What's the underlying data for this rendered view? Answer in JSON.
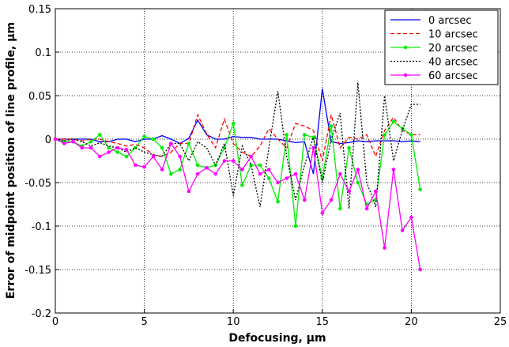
{
  "chart_data": {
    "type": "line",
    "xlabel": "Defocusing, µm",
    "ylabel": "Error of midpoint position of line profile, µm",
    "xlim": [
      0,
      25
    ],
    "ylim": [
      -0.2,
      0.15
    ],
    "xticks": [
      0,
      5,
      10,
      15,
      20,
      25
    ],
    "yticks": [
      -0.2,
      -0.15,
      -0.1,
      -0.05,
      0,
      0.05,
      0.1,
      0.15
    ],
    "xtick_labels": [
      "0",
      "5",
      "10",
      "15",
      "20",
      "25"
    ],
    "ytick_labels": [
      "-0.2",
      "-0.15",
      "-0.1",
      "-0.05",
      "0",
      "0.05",
      "0.1",
      "0.15"
    ],
    "grid": true,
    "legend_position": "top-right",
    "x": [
      0,
      0.5,
      1,
      1.5,
      2,
      2.5,
      3,
      3.5,
      4,
      4.5,
      5,
      5.5,
      6,
      6.5,
      7,
      7.5,
      8,
      8.5,
      9,
      9.5,
      10,
      10.5,
      11,
      11.5,
      12,
      12.5,
      13,
      13.5,
      14,
      14.5,
      15,
      15.5,
      16,
      16.5,
      17,
      17.5,
      18,
      18.5,
      19,
      19.5,
      20,
      20.5
    ],
    "series": [
      {
        "name": "0 arcsec",
        "color": "#0000ff",
        "dash": "",
        "marker": false,
        "values": [
          0,
          0,
          0,
          0,
          0,
          -0.003,
          -0.003,
          0,
          0,
          -0.003,
          0,
          0,
          0.004,
          0,
          -0.005,
          0.001,
          0.022,
          0.005,
          0,
          0,
          0.003,
          0.002,
          0.002,
          0,
          0,
          0,
          -0.002,
          -0.004,
          -0.003,
          -0.04,
          0.058,
          -0.003,
          -0.005,
          -0.004,
          -0.002,
          -0.003,
          -0.002,
          -0.002,
          -0.002,
          -0.003,
          -0.002,
          -0.003
        ]
      },
      {
        "name": "10 arcsec",
        "color": "#ff0000",
        "dash": "5,3",
        "marker": false,
        "values": [
          0,
          0,
          0,
          -0.002,
          0,
          0,
          -0.003,
          -0.005,
          -0.008,
          -0.006,
          -0.01,
          -0.018,
          -0.02,
          -0.015,
          -0.005,
          -0.005,
          0.028,
          0.006,
          -0.01,
          0.023,
          -0.005,
          -0.015,
          -0.02,
          -0.008,
          0.012,
          0,
          -0.01,
          0.018,
          0.015,
          0.01,
          -0.025,
          0.028,
          -0.01,
          0.002,
          0,
          0.005,
          -0.02,
          0.01,
          0.025,
          0.01,
          0.005,
          0.005
        ]
      },
      {
        "name": "20 arcsec",
        "color": "#00ee00",
        "dash": "",
        "marker": true,
        "values": [
          0,
          -0.003,
          -0.003,
          -0.008,
          -0.003,
          0.005,
          -0.01,
          -0.015,
          -0.02,
          -0.01,
          0.003,
          0,
          -0.01,
          -0.04,
          -0.035,
          -0.005,
          -0.03,
          -0.033,
          -0.03,
          -0.01,
          0.018,
          -0.053,
          -0.03,
          -0.03,
          -0.045,
          -0.072,
          0.005,
          -0.1,
          0.005,
          0.002,
          -0.045,
          0.015,
          -0.08,
          -0.01,
          -0.05,
          -0.075,
          -0.07,
          0.005,
          0.02,
          0.012,
          0.005,
          -0.058
        ]
      },
      {
        "name": "40 arcsec",
        "color": "#000000",
        "dash": "2,2",
        "marker": false,
        "values": [
          0,
          -0.002,
          0,
          -0.003,
          -0.008,
          -0.004,
          -0.008,
          -0.01,
          -0.015,
          -0.01,
          -0.015,
          -0.018,
          -0.02,
          -0.005,
          -0.005,
          -0.025,
          -0.003,
          -0.01,
          -0.03,
          -0.005,
          -0.065,
          -0.008,
          -0.03,
          -0.078,
          -0.01,
          0.055,
          -0.02,
          -0.07,
          -0.03,
          0.002,
          -0.05,
          0,
          0.03,
          -0.08,
          0.065,
          -0.05,
          -0.078,
          0.05,
          -0.025,
          0.01,
          0.04,
          0.04
        ]
      },
      {
        "name": "60 arcsec",
        "color": "#ff00ff",
        "dash": "",
        "marker": true,
        "values": [
          0,
          -0.005,
          -0.003,
          -0.01,
          -0.01,
          -0.02,
          -0.015,
          -0.01,
          -0.012,
          -0.03,
          -0.032,
          -0.02,
          -0.035,
          -0.005,
          -0.02,
          -0.06,
          -0.04,
          -0.033,
          -0.04,
          -0.025,
          -0.025,
          -0.035,
          -0.02,
          -0.04,
          -0.035,
          -0.05,
          -0.045,
          -0.04,
          -0.07,
          -0.01,
          -0.085,
          -0.07,
          -0.04,
          -0.06,
          -0.035,
          -0.08,
          -0.06,
          -0.125,
          -0.035,
          -0.105,
          -0.09,
          -0.15
        ]
      }
    ]
  }
}
